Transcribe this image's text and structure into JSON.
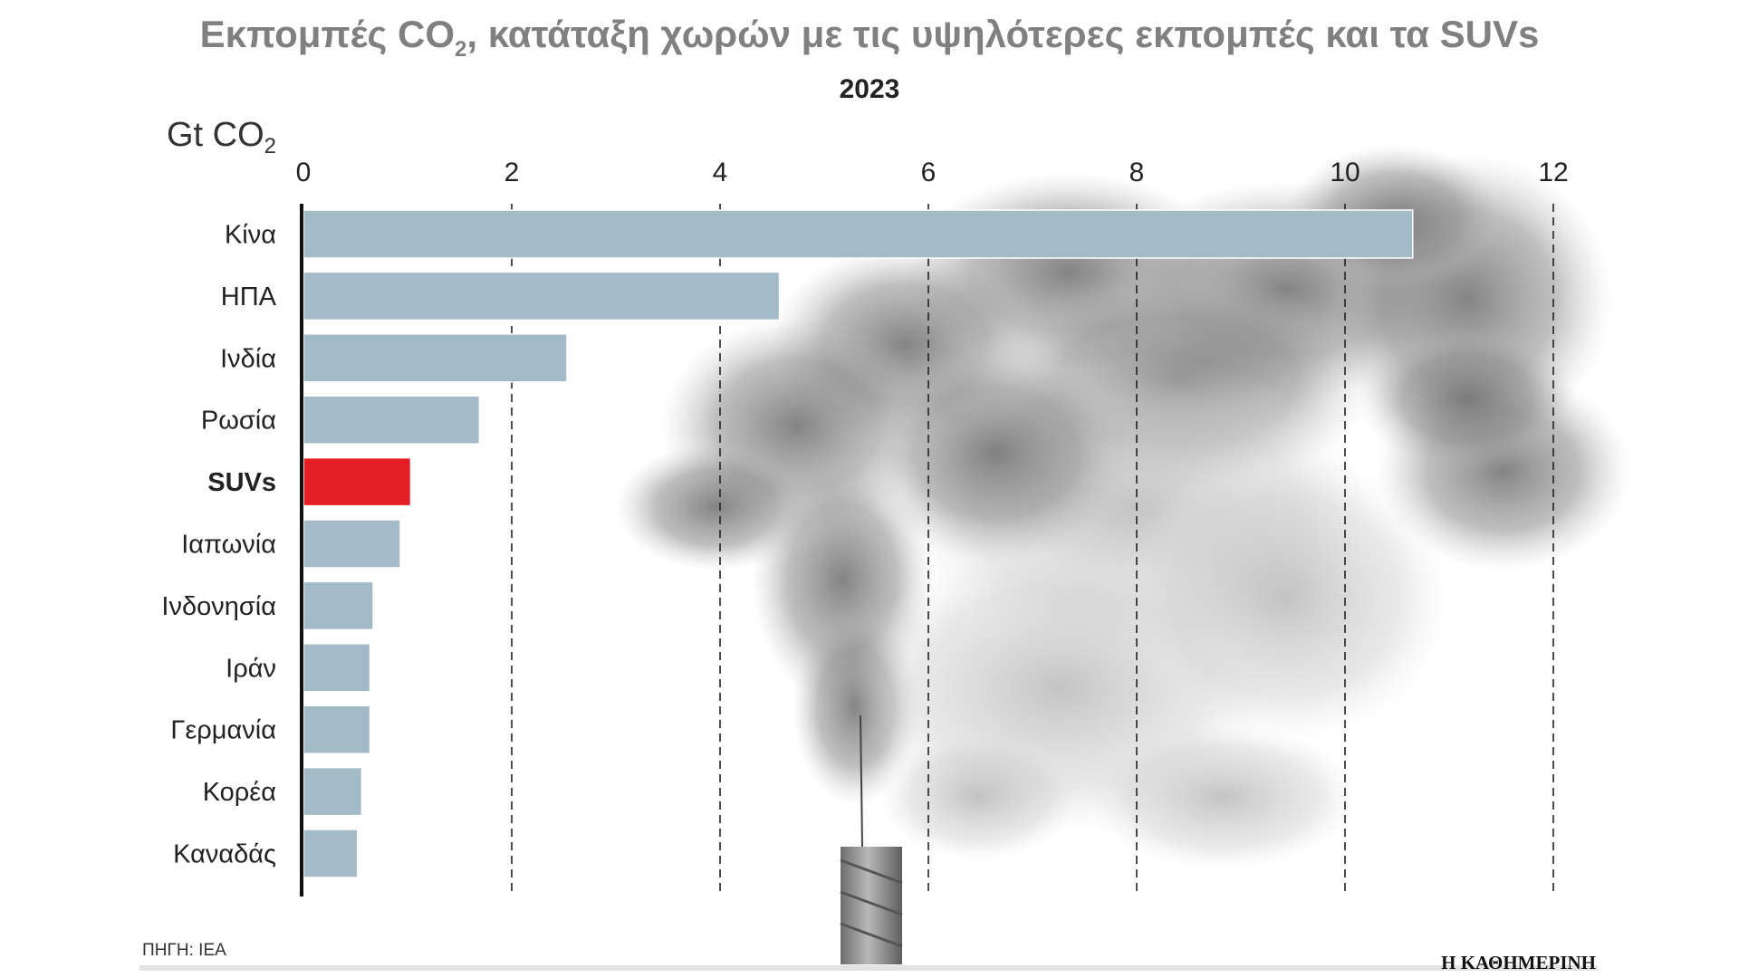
{
  "title_main": "Εκπομπές CO",
  "title_sub2": "2",
  "title_rest": ", κατάταξη χωρών με τις υψηλότερες εκπομπές και τα SUVs",
  "subtitle": "2023",
  "unit_main": "Gt CO",
  "unit_sub": "2",
  "source": "ΠΗΓΗ: IEA",
  "publisher": "Η ΚΑΘΗΜΕΡΙΝΗ",
  "colors": {
    "bar": "#a2bbc7",
    "highlight": "#e31e24",
    "title": "#808080",
    "text": "#222222"
  },
  "chart_data": {
    "type": "bar",
    "orientation": "horizontal",
    "categories": [
      "Κίνα",
      "ΗΠΑ",
      "Ινδία",
      "Ρωσία",
      "SUVs",
      "Ιαπωνία",
      "Ινδονησία",
      "Ιράν",
      "Γερμανία",
      "Κορέα",
      "Καναδάς"
    ],
    "values": [
      10.65,
      4.57,
      2.53,
      1.69,
      1.03,
      0.93,
      0.67,
      0.64,
      0.64,
      0.56,
      0.52
    ],
    "highlight": "SUVs",
    "xlim": [
      0,
      12
    ],
    "xticks": [
      "0",
      "2",
      "4",
      "6",
      "8",
      "10",
      "12"
    ],
    "xlabel": "Gt CO2",
    "grid": "vertical dashed",
    "legend": "none"
  }
}
